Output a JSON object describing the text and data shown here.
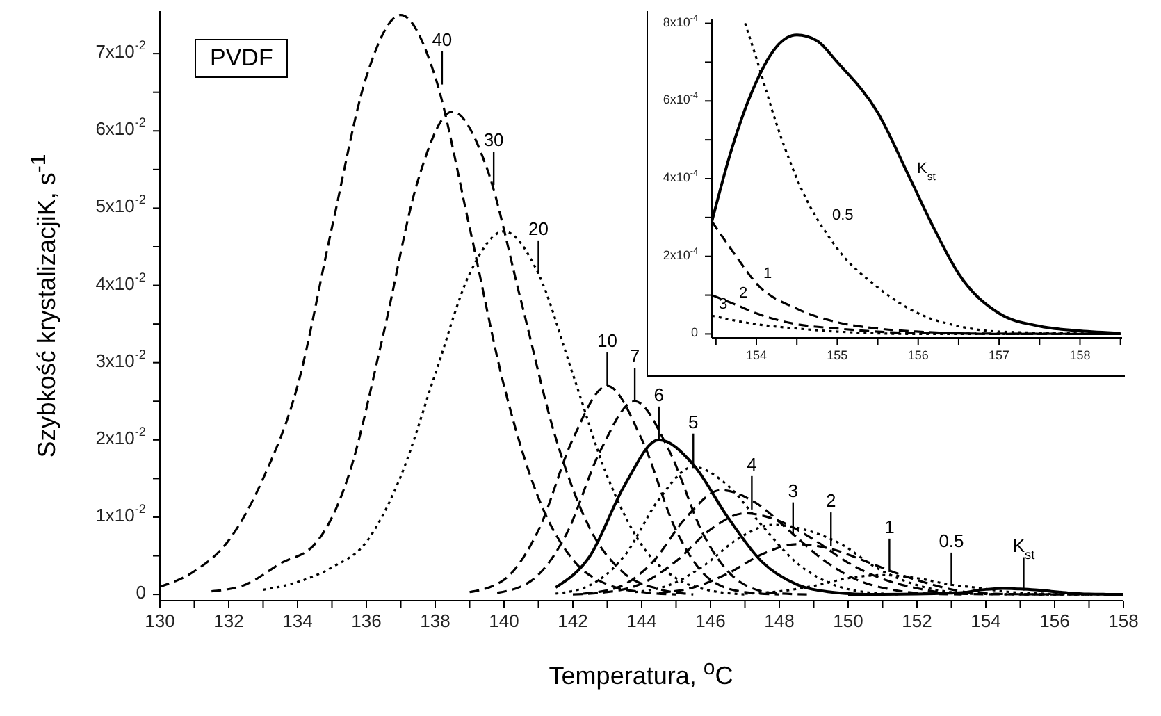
{
  "chart_data": [
    {
      "type": "line",
      "xlabel": "Temperatura, $^{o}$C",
      "ylabel": "Szybkość krystalizacjiK, s$^{-1}$",
      "marker": "none",
      "xlim": [
        130,
        158
      ],
      "ylim": [
        -0.0008,
        0.0755
      ],
      "xticks": [
        130,
        {
          "value": 131,
          "label": null
        },
        132,
        {
          "value": 133,
          "label": null
        },
        134,
        {
          "value": 135,
          "label": null
        },
        136,
        {
          "value": 137,
          "label": null
        },
        138,
        {
          "value": 139,
          "label": null
        },
        140,
        {
          "value": 141,
          "label": null
        },
        142,
        {
          "value": 143,
          "label": null
        },
        144,
        {
          "value": 145,
          "label": null
        },
        146,
        {
          "value": 147,
          "label": null
        },
        148,
        {
          "value": 149,
          "label": null
        },
        150,
        {
          "value": 151,
          "label": null
        },
        152,
        {
          "value": 153,
          "label": null
        },
        154,
        {
          "value": 155,
          "label": null
        },
        156,
        {
          "value": 157,
          "label": null
        },
        158
      ],
      "yticks": [
        0,
        {
          "value": 0.005,
          "label": null
        },
        {
          "value": 0.01,
          "label": "1x10$^{-2}$"
        },
        {
          "value": 0.015,
          "label": null
        },
        {
          "value": 0.02,
          "label": "2x10$^{-2}$"
        },
        {
          "value": 0.025,
          "label": null
        },
        {
          "value": 0.03,
          "label": "3x10$^{-2}$"
        },
        {
          "value": 0.035,
          "label": null
        },
        {
          "value": 0.04,
          "label": "4x10$^{-2}$"
        },
        {
          "value": 0.045,
          "label": null
        },
        {
          "value": 0.05,
          "label": "5x10$^{-2}$"
        },
        {
          "value": 0.055,
          "label": null
        },
        {
          "value": 0.06,
          "label": "6x10$^{-2}$"
        },
        {
          "value": 0.065,
          "label": null
        },
        {
          "value": 0.07,
          "label": "7x10$^{-2}$"
        }
      ],
      "series": [
        {
          "color": "#000000",
          "line_style": "dashed",
          "x": [
            130,
            131,
            132,
            133,
            134,
            135,
            136,
            137,
            138,
            139,
            140,
            141,
            142,
            143,
            144,
            145
          ],
          "values": [
            0.001,
            0.003,
            0.007,
            0.015,
            0.027,
            0.0475,
            0.067,
            0.075,
            0.067,
            0.0475,
            0.027,
            0.0125,
            0.0045,
            0.0013,
            0.0003,
            0
          ]
        },
        {
          "color": "#000000",
          "line_style": "dashed",
          "x": [
            131.5,
            132.5,
            133.5,
            134.5,
            135.5,
            136.5,
            137.5,
            138.5,
            139.5,
            140.5,
            141.5,
            142.5,
            143.5,
            144.5,
            145.5
          ],
          "values": [
            0.0004,
            0.0013,
            0.004,
            0.0065,
            0.0156,
            0.0338,
            0.0536,
            0.0625,
            0.0552,
            0.0379,
            0.0203,
            0.0085,
            0.0027,
            0.0007,
            0
          ]
        },
        {
          "color": "#000000",
          "line_style": "dotted",
          "x": [
            133,
            134,
            135,
            136,
            137,
            138,
            139,
            140,
            141,
            142,
            143,
            144,
            145,
            146,
            147
          ],
          "values": [
            0.0006,
            0.0016,
            0.0035,
            0.0068,
            0.0153,
            0.0285,
            0.0415,
            0.047,
            0.0415,
            0.0285,
            0.0153,
            0.0064,
            0.0021,
            0.0005,
            0
          ]
        },
        {
          "color": "#000000",
          "line_style": "dashed",
          "x": [
            139,
            140,
            141,
            142,
            143,
            144,
            145,
            146,
            147,
            148
          ],
          "values": [
            0.0003,
            0.0019,
            0.0083,
            0.0201,
            0.027,
            0.0201,
            0.0083,
            0.0019,
            0.0003,
            0
          ]
        },
        {
          "color": "#000000",
          "line_style": "dashed",
          "x": [
            139.8,
            140.8,
            141.8,
            142.8,
            143.8,
            144.8,
            145.8,
            146.8,
            147.8,
            148.8
          ],
          "values": [
            0.0002,
            0.0018,
            0.0077,
            0.0186,
            0.025,
            0.0186,
            0.0077,
            0.0018,
            0.0002,
            0
          ]
        },
        {
          "color": "#000000",
          "line_style": "solid",
          "x": [
            141.5,
            142.5,
            143.5,
            144.5,
            145.5,
            146.5,
            147.5,
            148.5,
            149.5,
            150.5
          ],
          "values": [
            0.0009,
            0.005,
            0.0141,
            0.02,
            0.0168,
            0.01,
            0.0042,
            0.0013,
            0.0003,
            0
          ]
        },
        {
          "color": "#000000",
          "line_style": "dotted",
          "x": [
            141.5,
            142.5,
            143.5,
            144.5,
            145.5,
            146.5,
            147.5,
            148.5,
            149.5,
            150.5,
            151.5
          ],
          "values": [
            0.0001,
            0.0012,
            0.005,
            0.0123,
            0.0165,
            0.0141,
            0.0089,
            0.0041,
            0.0014,
            0.0003,
            0
          ]
        },
        {
          "color": "#000000",
          "line_style": "dashed",
          "x": [
            142.3,
            143.3,
            144.3,
            145.3,
            146.3,
            147.3,
            148.3,
            149.3,
            150.3,
            151.3,
            152.3,
            153.3
          ],
          "values": [
            0.0001,
            0.0009,
            0.0041,
            0.01,
            0.0135,
            0.0119,
            0.0082,
            0.0044,
            0.0018,
            0.0006,
            0.0001,
            0
          ]
        },
        {
          "color": "#000000",
          "line_style": "dashed",
          "x": [
            142,
            143,
            144,
            145,
            146,
            147,
            148,
            149,
            150,
            151,
            152,
            153,
            154,
            155,
            156
          ],
          "values": [
            0,
            0.0003,
            0.0014,
            0.0043,
            0.0084,
            0.0105,
            0.0095,
            0.0071,
            0.0041,
            0.002,
            0.0008,
            0.00012,
            2.5e-05,
            6e-06,
            0
          ]
        },
        {
          "color": "#000000",
          "line_style": "dotted",
          "x": [
            143.8,
            144.8,
            145.8,
            146.8,
            147.8,
            148.8,
            149.8,
            150.8,
            151.8,
            152.8,
            153.45,
            154,
            154.5,
            155,
            156,
            157
          ],
          "values": [
            0.0003,
            0.0012,
            0.0037,
            0.0072,
            0.009,
            0.0083,
            0.0065,
            0.0035,
            0.0015,
            0.0004,
            0.0001,
            5.3e-05,
            2.5e-05,
            1.4e-05,
            2e-06,
            0
          ]
        },
        {
          "color": "#000000",
          "line_style": "dashed",
          "x": [
            144.5,
            145.5,
            146.5,
            147.5,
            148.5,
            149.5,
            150.5,
            151.5,
            152.5,
            153.45,
            154,
            154.5,
            155,
            155.5,
            156,
            157
          ],
          "values": [
            0.0002,
            0.0009,
            0.0027,
            0.0052,
            0.0065,
            0.0059,
            0.0043,
            0.0026,
            0.0012,
            0.00029,
            0.00013,
            6.5e-05,
            3e-05,
            1.4e-05,
            6e-06,
            0
          ]
        },
        {
          "color": "#000000",
          "line_style": "dotted",
          "x": [
            147,
            148,
            149,
            150,
            151,
            152,
            153,
            153.86,
            154,
            154.25,
            154.5,
            155,
            155.5,
            156,
            156.5,
            157,
            158
          ],
          "values": [
            0.0001,
            0.0004,
            0.0011,
            0.0021,
            0.0025,
            0.0021,
            0.00125,
            0.0008,
            0.00071,
            0.00054,
            0.0004,
            0.00022,
            0.00012,
            5.3e-05,
            2e-05,
            6e-06,
            0
          ]
        },
        {
          "color": "#000000",
          "line_style": "solid",
          "x": [
            150,
            151,
            152,
            152.5,
            153,
            153.45,
            153.7,
            154,
            154.25,
            154.5,
            154.75,
            155,
            155.5,
            155.9,
            156.2,
            156.5,
            157,
            157.5,
            158
          ],
          "values": [
            0,
            1e-05,
            5e-05,
            0.0001,
            0.00018,
            0.00029,
            0.00048,
            0.00065,
            0.00074,
            0.00077,
            0.000755,
            0.0007,
            0.00057,
            0.0004,
            0.00027,
            0.000155,
            5.3e-05,
            2e-05,
            8e-06
          ]
        }
      ],
      "annotations": [
        "PVDF",
        {
          "text": "40",
          "x": 138.2,
          "y": 0.066
        },
        {
          "text": "30",
          "x": 139.7,
          "y": 0.053
        },
        {
          "text": "20",
          "x": 141,
          "y": 0.0415
        },
        {
          "text": "10",
          "x": 143,
          "y": 0.027
        },
        {
          "text": "7",
          "x": 143.8,
          "y": 0.025
        },
        {
          "text": "6",
          "x": 144.5,
          "y": 0.02
        },
        {
          "text": "5",
          "x": 145.5,
          "y": 0.0165
        },
        {
          "text": "4",
          "x": 147.2,
          "y": 0.011
        },
        {
          "text": "3",
          "x": 148.4,
          "y": 0.0076
        },
        {
          "text": "2",
          "x": 149.5,
          "y": 0.0063
        },
        {
          "text": "1",
          "x": 151.2,
          "y": 0.0029
        },
        {
          "text": "0.5",
          "x": 153,
          "y": 0.0011
        },
        {
          "text": "K$_{st}$",
          "x": 155.1,
          "y": 0.0005
        }
      ]
    },
    {
      "type": "line",
      "marker": "none",
      "xlim": [
        153.45,
        158.52
      ],
      "ylim": [
        -1e-05,
        0.00081
      ],
      "xticks": [
        {
          "value": 153.5,
          "label": null
        },
        154,
        {
          "value": 154.5,
          "label": null
        },
        155,
        {
          "value": 155.5,
          "label": null
        },
        156,
        {
          "value": 156.5,
          "label": null
        },
        157,
        {
          "value": 157.5,
          "label": null
        },
        158,
        {
          "value": 158.5,
          "label": null
        }
      ],
      "yticks": [
        0,
        {
          "value": 0.0001,
          "label": null
        },
        {
          "value": 0.0002,
          "label": "2x10$^{-4}$"
        },
        {
          "value": 0.0003,
          "label": null
        },
        {
          "value": 0.0004,
          "label": "4x10$^{-4}$"
        },
        {
          "value": 0.0005,
          "label": null
        },
        {
          "value": 0.0006,
          "label": "6x10$^{-4}$"
        },
        {
          "value": 0.0007,
          "label": null
        },
        {
          "value": 0.0008,
          "label": "8x10$^{-4}$"
        }
      ],
      "series": [
        {
          "color": "#000000",
          "line_style": "solid",
          "x": [
            153.45,
            153.7,
            154,
            154.25,
            154.5,
            154.75,
            155,
            155.5,
            155.9,
            156.2,
            156.5,
            157,
            157.5,
            158,
            158.5
          ],
          "values": [
            0.00029,
            0.00048,
            0.00065,
            0.00074,
            0.00077,
            0.000755,
            0.0007,
            0.00057,
            0.0004,
            0.00027,
            0.000155,
            5.3e-05,
            2e-05,
            8e-06,
            2e-06
          ]
        },
        {
          "color": "#000000",
          "line_style": "dotted",
          "x": [
            153.86,
            154,
            154.25,
            154.5,
            155,
            155.5,
            156,
            156.5,
            157,
            158.5
          ],
          "values": [
            0.0008,
            0.00071,
            0.00054,
            0.0004,
            0.00022,
            0.00012,
            5.3e-05,
            2e-05,
            6e-06,
            0
          ]
        },
        {
          "color": "#000000",
          "line_style": "dashed",
          "x": [
            153.45,
            153.75,
            154,
            154.5,
            155,
            155.5,
            156,
            157,
            158.5
          ],
          "values": [
            0.00029,
            0.0002,
            0.00013,
            6.5e-05,
            3e-05,
            1.4e-05,
            6e-06,
            0,
            0
          ]
        },
        {
          "color": "#000000",
          "line_style": "dashed",
          "x": [
            153.45,
            153.75,
            154,
            154.5,
            155,
            156,
            158.5
          ],
          "values": [
            0.0001,
            7.5e-05,
            5.3e-05,
            2.5e-05,
            1.4e-05,
            2e-06,
            0
          ]
        },
        {
          "color": "#000000",
          "line_style": "dotted",
          "x": [
            153.45,
            154,
            154.5,
            155,
            156,
            158.5
          ],
          "values": [
            4.7e-05,
            2.5e-05,
            1.4e-05,
            6e-06,
            0,
            0
          ]
        }
      ],
      "annotations": [
        {
          "text": "K$_{st}$",
          "x": 155.9,
          "y": 0.0004
        },
        {
          "text": "0.5",
          "x": 154.85,
          "y": 0.00028
        },
        {
          "text": "1",
          "x": 154,
          "y": 0.00013
        },
        {
          "text": "2",
          "x": 153.7,
          "y": 8e-05
        },
        {
          "text": "3",
          "x": 153.45,
          "y": 5e-05
        }
      ]
    }
  ]
}
